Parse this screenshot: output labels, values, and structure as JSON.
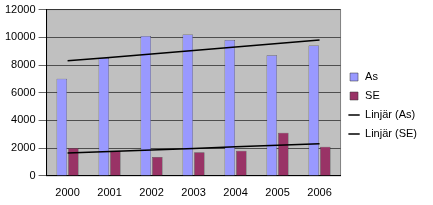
{
  "chart_data": {
    "type": "bar",
    "categories": [
      "2000",
      "2001",
      "2002",
      "2003",
      "2004",
      "2005",
      "2006"
    ],
    "series": [
      {
        "name": "As",
        "color": "#9999ff",
        "values": [
          7000,
          8500,
          10100,
          10200,
          9800,
          8700,
          9400
        ]
      },
      {
        "name": "SE",
        "color": "#993366",
        "values": [
          2000,
          1800,
          1350,
          1700,
          1800,
          3100,
          2100
        ]
      },
      {
        "name": "Linjär (As)",
        "type": "line",
        "color": "#000000",
        "marker": "none",
        "line_style": "solid",
        "values": [
          8300,
          8550,
          8800,
          9050,
          9300,
          9550,
          9800
        ]
      },
      {
        "name": "Linjär (SE)",
        "type": "line",
        "color": "#000000",
        "marker": "none",
        "line_style": "solid",
        "values": [
          1650,
          1760,
          1870,
          1980,
          2090,
          2200,
          2310
        ]
      }
    ],
    "ylim": [
      0,
      12000
    ],
    "yticks": [
      0,
      2000,
      4000,
      6000,
      8000,
      10000,
      12000
    ],
    "grid": true,
    "legend": "right"
  }
}
